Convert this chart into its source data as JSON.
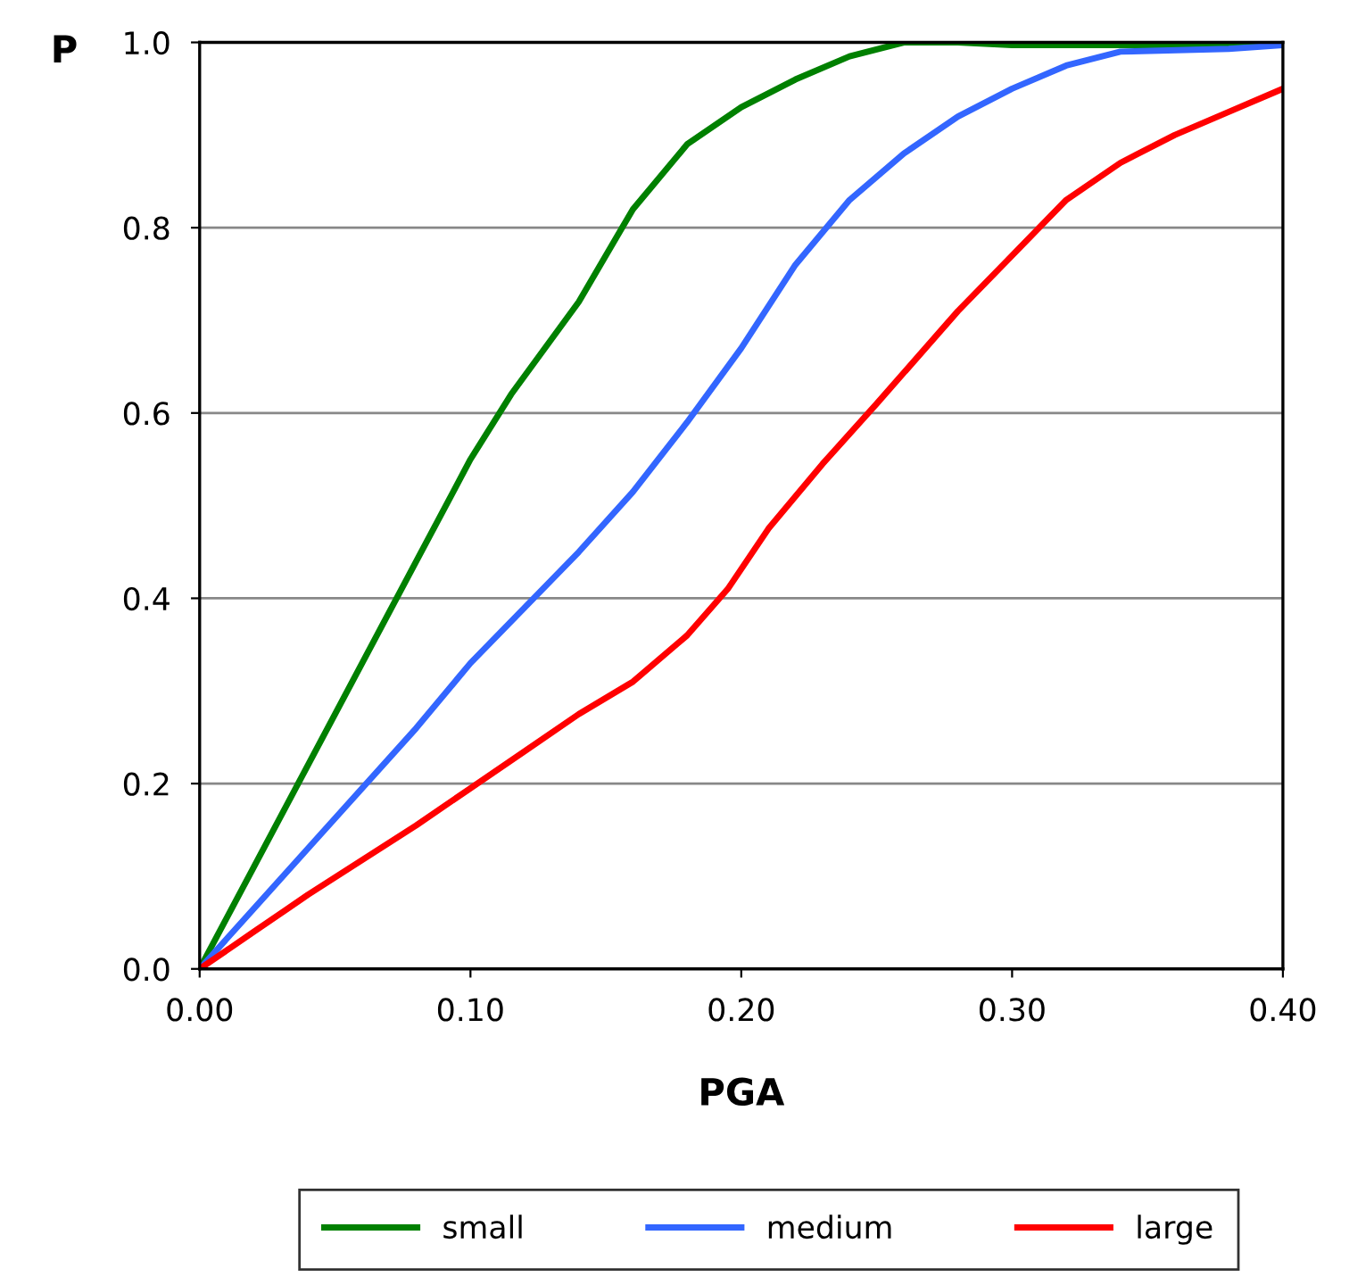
{
  "chart_data": {
    "type": "line",
    "xlabel": "PGA",
    "ylabel": "P",
    "xlim": [
      0,
      0.4
    ],
    "ylim": [
      0,
      1
    ],
    "xticks": [
      {
        "value": 0,
        "label": "0.00"
      },
      {
        "value": 0.1,
        "label": "0.10"
      },
      {
        "value": 0.2,
        "label": "0.20"
      },
      {
        "value": 0.3,
        "label": "0.30"
      },
      {
        "value": 0.4,
        "label": "0.40"
      }
    ],
    "yticks": [
      {
        "value": 0,
        "label": "0.0"
      },
      {
        "value": 0.2,
        "label": "0.2"
      },
      {
        "value": 0.4,
        "label": "0.4"
      },
      {
        "value": 0.6,
        "label": "0.6"
      },
      {
        "value": 0.8,
        "label": "0.8"
      },
      {
        "value": 1,
        "label": "1.0"
      }
    ],
    "grid": "y",
    "legend": "bottom",
    "marker": "none",
    "line_style": "solid",
    "series": [
      {
        "name": "small",
        "color": "#008000",
        "x": [
          0,
          0.02,
          0.04,
          0.06,
          0.08,
          0.1,
          0.115,
          0.14,
          0.16,
          0.18,
          0.2,
          0.22,
          0.24,
          0.26,
          0.28,
          0.3,
          0.4
        ],
        "values": [
          0,
          0.11,
          0.22,
          0.33,
          0.44,
          0.55,
          0.62,
          0.72,
          0.82,
          0.89,
          0.93,
          0.96,
          0.985,
          1.0,
          1.0,
          0.997,
          0.997
        ]
      },
      {
        "name": "medium",
        "color": "#3366ff",
        "x": [
          0,
          0.04,
          0.08,
          0.1,
          0.12,
          0.14,
          0.16,
          0.18,
          0.2,
          0.22,
          0.24,
          0.26,
          0.28,
          0.3,
          0.32,
          0.34,
          0.38,
          0.4
        ],
        "values": [
          0,
          0.13,
          0.26,
          0.33,
          0.39,
          0.45,
          0.515,
          0.59,
          0.67,
          0.76,
          0.83,
          0.88,
          0.92,
          0.95,
          0.975,
          0.99,
          0.993,
          0.997
        ]
      },
      {
        "name": "large",
        "color": "#ff0000",
        "x": [
          0,
          0.02,
          0.04,
          0.08,
          0.1,
          0.12,
          0.14,
          0.16,
          0.18,
          0.195,
          0.21,
          0.23,
          0.25,
          0.28,
          0.3,
          0.32,
          0.34,
          0.36,
          0.38,
          0.4
        ],
        "values": [
          0,
          0.04,
          0.08,
          0.155,
          0.195,
          0.235,
          0.275,
          0.31,
          0.36,
          0.41,
          0.475,
          0.545,
          0.61,
          0.71,
          0.77,
          0.83,
          0.87,
          0.9,
          0.925,
          0.95
        ]
      }
    ]
  }
}
